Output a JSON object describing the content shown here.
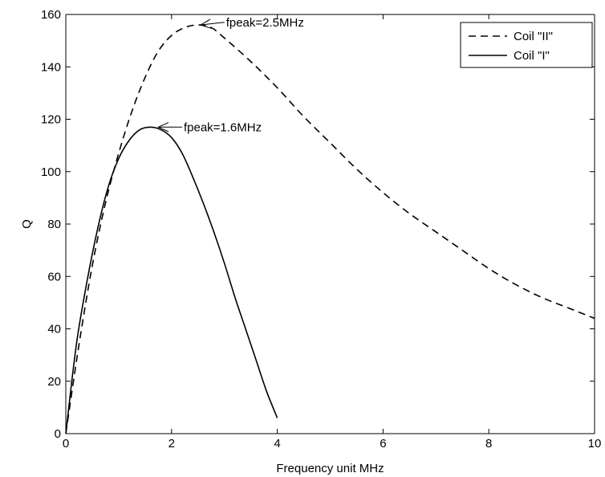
{
  "chart_data": {
    "type": "line",
    "title": "",
    "xlabel": "Frequency unit MHz",
    "ylabel": "Q",
    "xlim": [
      0,
      10
    ],
    "ylim": [
      0,
      160
    ],
    "xticks": [
      0,
      2,
      4,
      6,
      8,
      10
    ],
    "yticks": [
      0,
      20,
      40,
      60,
      80,
      100,
      120,
      140,
      160
    ],
    "grid": false,
    "legend_position": "top-right",
    "series": [
      {
        "name": "Coil \"II\"",
        "line_style": "dashed",
        "color": "#000000",
        "x": [
          0,
          0.25,
          0.5,
          0.75,
          1.0,
          1.25,
          1.5,
          1.75,
          2.0,
          2.25,
          2.5,
          2.75,
          3.0,
          3.5,
          4.0,
          4.5,
          5.0,
          5.5,
          6.0,
          6.5,
          7.0,
          7.5,
          8.0,
          8.5,
          9.0,
          9.5,
          10.0
        ],
        "y": [
          0,
          34,
          64,
          88,
          107,
          123,
          136,
          146,
          152,
          155,
          156,
          155,
          151,
          142,
          132,
          121,
          111,
          101,
          92,
          84,
          77,
          70,
          63,
          57,
          52,
          48,
          44
        ]
      },
      {
        "name": "Coil \"I\"",
        "line_style": "solid",
        "color": "#000000",
        "x": [
          0,
          0.2,
          0.4,
          0.6,
          0.8,
          1.0,
          1.2,
          1.4,
          1.6,
          1.8,
          2.0,
          2.2,
          2.4,
          2.6,
          2.8,
          3.0,
          3.2,
          3.4,
          3.6,
          3.8,
          4.0
        ],
        "y": [
          0,
          34,
          58,
          78,
          94,
          105,
          112,
          116,
          117,
          116,
          113,
          107,
          98,
          88,
          77,
          65,
          52,
          40,
          28,
          16,
          6
        ]
      }
    ],
    "annotations": [
      {
        "text": "fpeak=2.5MHz",
        "point": [
          2.55,
          156
        ],
        "text_anchor": [
          3.0,
          157
        ]
      },
      {
        "text": "fpeak=1.6MHz",
        "point": [
          1.75,
          117
        ],
        "text_anchor": [
          2.2,
          117
        ]
      }
    ]
  }
}
